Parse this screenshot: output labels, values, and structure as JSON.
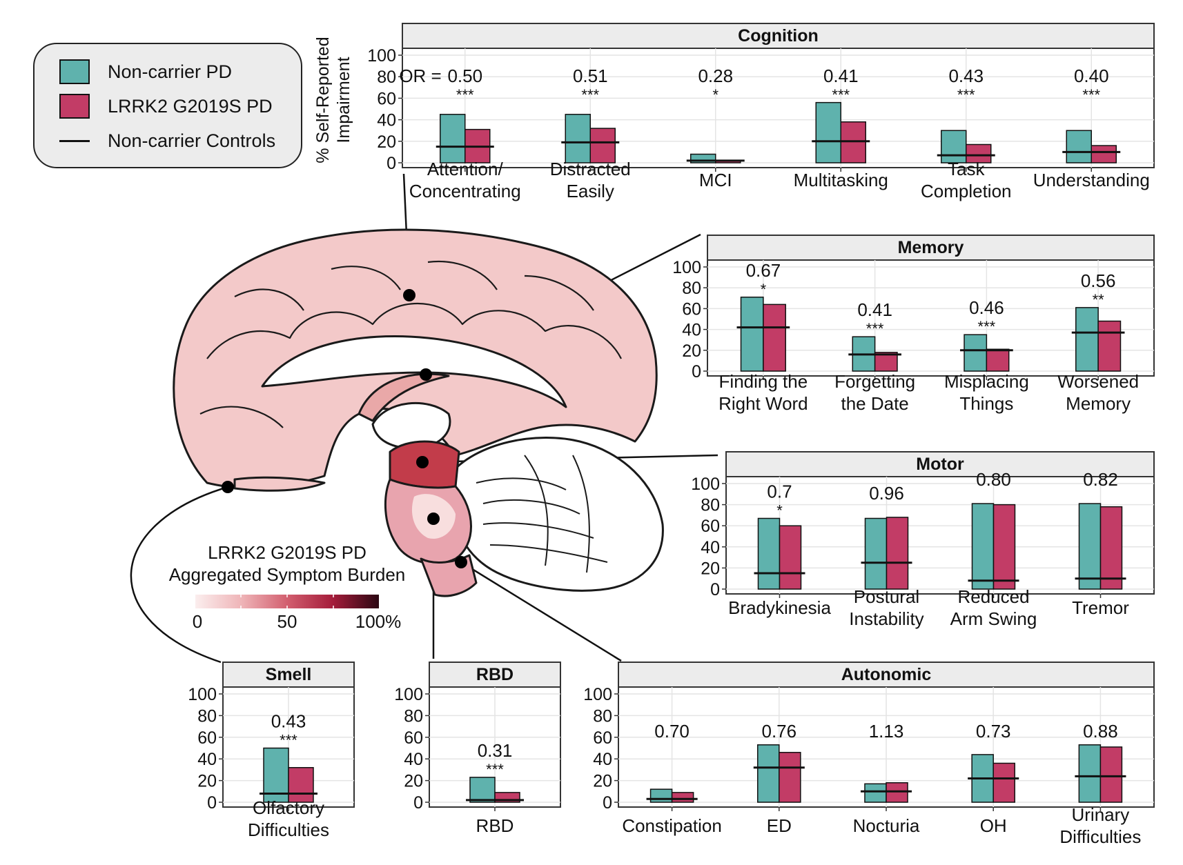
{
  "legend": {
    "noncarrier_label": "Non-carrier PD",
    "lrrk2_label": "LRRK2 G2019S PD",
    "controls_label": "Non-carrier Controls"
  },
  "colors": {
    "noncarrier": "#5fb2ad",
    "lrrk2": "#c23c66",
    "panel_strip": "#ececec",
    "brain_base": "#f3c9c9",
    "brain_stroke": "#1a1a1a"
  },
  "y_axis_label_lines": [
    "% Self-Reported",
    "Impairment"
  ],
  "or_prefix": "OR =",
  "colorbar": {
    "title_lines": [
      "LRRK2 G2019S PD",
      "Aggregated Symptom Burden"
    ],
    "ticks": [
      "0",
      "50",
      "100%"
    ],
    "stops": [
      "#fbeeee",
      "#efb5b8",
      "#d25f6f",
      "#a41c3a",
      "#2b0712"
    ]
  },
  "chart_data": [
    {
      "type": "bar",
      "title": "Cognition",
      "ylim": [
        0,
        100
      ],
      "yticks": [
        "0",
        "20",
        "40",
        "60",
        "80",
        "100"
      ],
      "categories": [
        [
          "Attention/",
          "Concentrating"
        ],
        [
          "Distracted",
          "Easily"
        ],
        [
          "MCI"
        ],
        [
          "Multitasking"
        ],
        [
          "Task",
          "Completion"
        ],
        [
          "Understanding"
        ]
      ],
      "series": [
        {
          "name": "Non-carrier PD",
          "values": [
            45,
            45,
            8,
            56,
            30,
            30
          ]
        },
        {
          "name": "LRRK2 G2019S PD",
          "values": [
            31,
            32,
            2,
            38,
            17,
            16
          ]
        },
        {
          "name": "Non-carrier Controls",
          "values": [
            15,
            19,
            2,
            20,
            7,
            10
          ]
        }
      ],
      "odds_ratios": [
        "0.50",
        "0.51",
        "0.28",
        "0.41",
        "0.43",
        "0.40"
      ],
      "significance": [
        "***",
        "***",
        "*",
        "***",
        "***",
        "***"
      ]
    },
    {
      "type": "bar",
      "title": "Memory",
      "ylim": [
        0,
        100
      ],
      "yticks": [
        "0",
        "20",
        "40",
        "60",
        "80",
        "100"
      ],
      "categories": [
        [
          "Finding the",
          "Right Word"
        ],
        [
          "Forgetting",
          "the Date"
        ],
        [
          "Misplacing",
          "Things"
        ],
        [
          "Worsened",
          "Memory"
        ]
      ],
      "series": [
        {
          "name": "Non-carrier PD",
          "values": [
            71,
            33,
            35,
            61
          ]
        },
        {
          "name": "LRRK2 G2019S PD",
          "values": [
            64,
            18,
            21,
            48
          ]
        },
        {
          "name": "Non-carrier Controls",
          "values": [
            42,
            16,
            20,
            37
          ]
        }
      ],
      "odds_ratios": [
        "0.67",
        "0.41",
        "0.46",
        "0.56"
      ],
      "significance": [
        "*",
        "***",
        "***",
        "**"
      ]
    },
    {
      "type": "bar",
      "title": "Motor",
      "ylim": [
        0,
        100
      ],
      "yticks": [
        "0",
        "20",
        "40",
        "60",
        "80",
        "100"
      ],
      "categories": [
        [
          "Bradykinesia"
        ],
        [
          "Postural",
          "Instability"
        ],
        [
          "Reduced",
          "Arm Swing"
        ],
        [
          "Tremor"
        ]
      ],
      "series": [
        {
          "name": "Non-carrier PD",
          "values": [
            67,
            67,
            81,
            81
          ]
        },
        {
          "name": "LRRK2 G2019S PD",
          "values": [
            60,
            68,
            80,
            78
          ]
        },
        {
          "name": "Non-carrier Controls",
          "values": [
            15,
            25,
            8,
            10
          ]
        }
      ],
      "odds_ratios": [
        "0.7",
        "0.96",
        "0.80",
        "0.82"
      ],
      "significance": [
        "*",
        "",
        "",
        ""
      ]
    },
    {
      "type": "bar",
      "title": "Smell",
      "ylim": [
        0,
        100
      ],
      "yticks": [
        "0",
        "20",
        "40",
        "60",
        "80",
        "100"
      ],
      "categories": [
        [
          "Olfactory",
          "Difficulties"
        ]
      ],
      "series": [
        {
          "name": "Non-carrier PD",
          "values": [
            50
          ]
        },
        {
          "name": "LRRK2 G2019S PD",
          "values": [
            32
          ]
        },
        {
          "name": "Non-carrier Controls",
          "values": [
            8
          ]
        }
      ],
      "odds_ratios": [
        "0.43"
      ],
      "significance": [
        "***"
      ]
    },
    {
      "type": "bar",
      "title": "RBD",
      "ylim": [
        0,
        100
      ],
      "yticks": [
        "0",
        "20",
        "40",
        "60",
        "80",
        "100"
      ],
      "categories": [
        [
          "RBD"
        ]
      ],
      "series": [
        {
          "name": "Non-carrier PD",
          "values": [
            23
          ]
        },
        {
          "name": "LRRK2 G2019S PD",
          "values": [
            9
          ]
        },
        {
          "name": "Non-carrier Controls",
          "values": [
            2
          ]
        }
      ],
      "odds_ratios": [
        "0.31"
      ],
      "significance": [
        "***"
      ]
    },
    {
      "type": "bar",
      "title": "Autonomic",
      "ylim": [
        0,
        100
      ],
      "yticks": [
        "0",
        "20",
        "40",
        "60",
        "80",
        "100"
      ],
      "categories": [
        [
          "Constipation"
        ],
        [
          "ED"
        ],
        [
          "Nocturia"
        ],
        [
          "OH"
        ],
        [
          "Urinary",
          "Difficulties"
        ]
      ],
      "series": [
        {
          "name": "Non-carrier PD",
          "values": [
            12,
            53,
            17,
            44,
            53
          ]
        },
        {
          "name": "LRRK2 G2019S PD",
          "values": [
            9,
            46,
            18,
            36,
            51
          ]
        },
        {
          "name": "Non-carrier Controls",
          "values": [
            3,
            32,
            10,
            22,
            24
          ]
        }
      ],
      "odds_ratios": [
        "0.70",
        "0.76",
        "1.13",
        "0.73",
        "0.88"
      ],
      "significance": [
        "",
        "",
        "",
        "",
        ""
      ]
    }
  ]
}
